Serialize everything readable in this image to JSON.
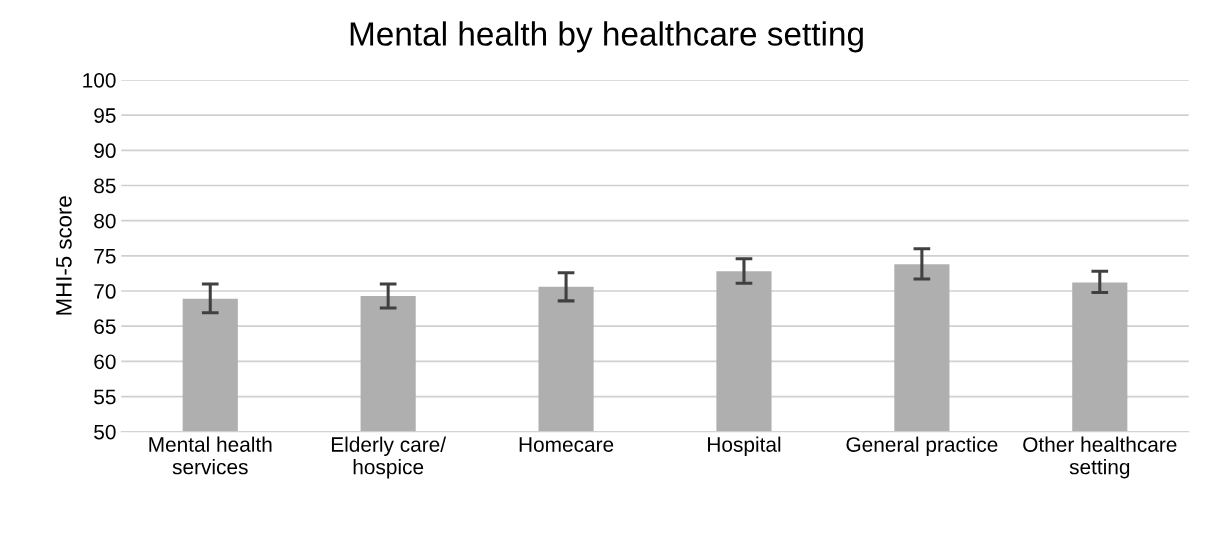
{
  "chart_data": {
    "type": "bar",
    "title": "Mental health by healthcare setting",
    "ylabel": "MHI-5 score",
    "categories": [
      "Mental health\nservices",
      "Elderly care/\nhospice",
      "Homecare",
      "Hospital",
      "General practice",
      "Other healthcare\nsetting"
    ],
    "values": [
      68.9,
      69.3,
      70.6,
      72.8,
      73.8,
      71.2
    ],
    "errors": [
      [
        66.9,
        71.0
      ],
      [
        67.6,
        71.0
      ],
      [
        68.6,
        72.6
      ],
      [
        71.1,
        74.6
      ],
      [
        71.7,
        76.0
      ],
      [
        69.8,
        72.8
      ]
    ],
    "color": "#afafaf",
    "ylim": [
      50,
      100
    ],
    "yticks": [
      50,
      55,
      60,
      65,
      70,
      75,
      80,
      85,
      90,
      95,
      100
    ],
    "grid": "y",
    "legend": false
  }
}
